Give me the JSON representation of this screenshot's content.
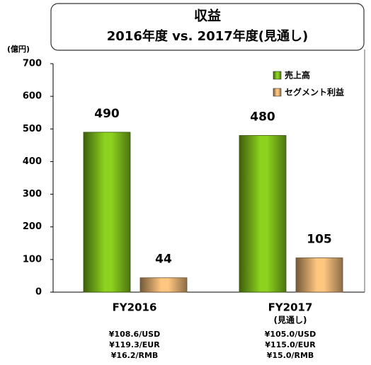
{
  "chart_data": {
    "type": "bar",
    "title": "収益",
    "subtitle": "2016年度 vs. 2017年度(見通し)",
    "y_axis_label": "(億円)",
    "categories": [
      "FY2016",
      "FY2017"
    ],
    "category_notes": [
      null,
      "(見通し)"
    ],
    "fx_notes": [
      [
        "¥108.6/USD",
        "¥119.3/EUR",
        "¥16.2/RMB"
      ],
      [
        "¥105.0/USD",
        "¥115.0/EUR",
        "¥15.0/RMB"
      ]
    ],
    "series": [
      {
        "name": "売上高",
        "color": "#8cd21e",
        "values": [
          490,
          480
        ]
      },
      {
        "name": "セグメント利益",
        "color": "#ffc680",
        "values": [
          44,
          105
        ]
      }
    ],
    "ylim": [
      0,
      700
    ],
    "yticks": [
      0,
      100,
      200,
      300,
      400,
      500,
      600,
      700
    ],
    "legend": "upper right"
  }
}
